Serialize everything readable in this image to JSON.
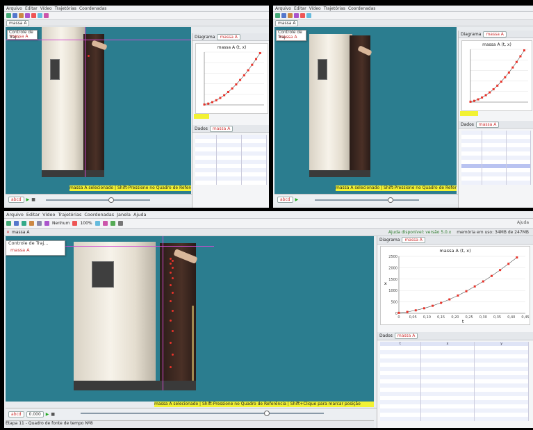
{
  "app": {
    "menu": [
      "Arquivo",
      "Editar",
      "Vídeo",
      "Trajetórias",
      "Coordenadas",
      "Janela",
      "Ajuda"
    ],
    "toolbar_icons": [
      "open-icon",
      "save-icon",
      "import-icon",
      "video-icon",
      "clip-icon",
      "calibration-icon",
      "axes-icon",
      "track-icon",
      "zoom-icon",
      "pen-icon",
      "filter-icon",
      "settings-icon"
    ],
    "colors": {
      "video_bg": "#2b7d8f",
      "hint_bg": "#f2f233",
      "track_point": "#e8332a",
      "axis_line": "#d24bd0",
      "table_text": "#3346a0"
    }
  },
  "large": {
    "toolbar": {
      "zoom_label": "Nenhum",
      "zoom_value": "100%",
      "right_text": "Ajuda"
    },
    "update_notice": "Ajuda disponível: versão 5.0.x",
    "memory": "memória em uso: 34MB de 247MB",
    "video_tab": "massa A",
    "track_control_title": "Controle de Traj...",
    "popup_item": "massa A",
    "hint": "massa A selecionado | Shift-Pressione no Quadro de Referência | Shift+Clique para marcar posição",
    "controls": {
      "step_label": "abcd",
      "frame_value": "0.000"
    },
    "side": {
      "plot_tab": "Diagrama",
      "plot_object": "massa A",
      "plot_title": "massa A (t, x)",
      "ylabel": "x",
      "xlabel": "t",
      "yticks": [
        "2500",
        "2000",
        "1500",
        "1000",
        "500",
        "0"
      ],
      "xticks": [
        "0",
        "0,05",
        "0,10",
        "0,15",
        "0,20",
        "0,25",
        "0,30",
        "0,35",
        "0,40",
        "0,45"
      ],
      "table_tab": "Dados",
      "table_object": "massa A",
      "table_headers": [
        "t",
        "x",
        "y"
      ]
    },
    "status": "Etapa 11 - Quadro de fonte de tempo Nº8"
  },
  "top_left": {
    "video_tab": "massa A",
    "track_control_title": "Controle de Traj...",
    "popup_item": "massa A",
    "hint": "massa A selecionado | Shift-Pressione no Quadro de Referência",
    "side": {
      "plot_tab": "Diagrama",
      "plot_object": "massa A",
      "plot_title": "massa A (t, x)",
      "table_tab": "Dados",
      "table_object": "massa A"
    },
    "controls": {
      "step_label": "abcd"
    }
  },
  "top_right": {
    "video_tab": "massa A",
    "track_control_title": "Controle de Traj...",
    "popup_item": "massa A",
    "hint": "massa A selecionado | Shift-Pressione no Quadro de Referência",
    "side": {
      "plot_tab": "Diagrama",
      "plot_object": "massa A",
      "plot_title": "massa A (t, x)",
      "table_tab": "Dados",
      "table_object": "massa A"
    },
    "controls": {
      "step_label": "abcd"
    }
  },
  "chart_data": [
    {
      "type": "scatter",
      "title": "massa A (t, x)",
      "xlabel": "t",
      "ylabel": "x",
      "xlim": [
        0,
        0.45
      ],
      "ylim": [
        0,
        2500
      ],
      "x": [
        0,
        0.03,
        0.06,
        0.09,
        0.12,
        0.15,
        0.18,
        0.21,
        0.24,
        0.27,
        0.3,
        0.33,
        0.36,
        0.39,
        0.42
      ],
      "values": [
        20,
        60,
        130,
        220,
        330,
        460,
        610,
        780,
        970,
        1180,
        1400,
        1640,
        1900,
        2170,
        2450
      ]
    }
  ]
}
